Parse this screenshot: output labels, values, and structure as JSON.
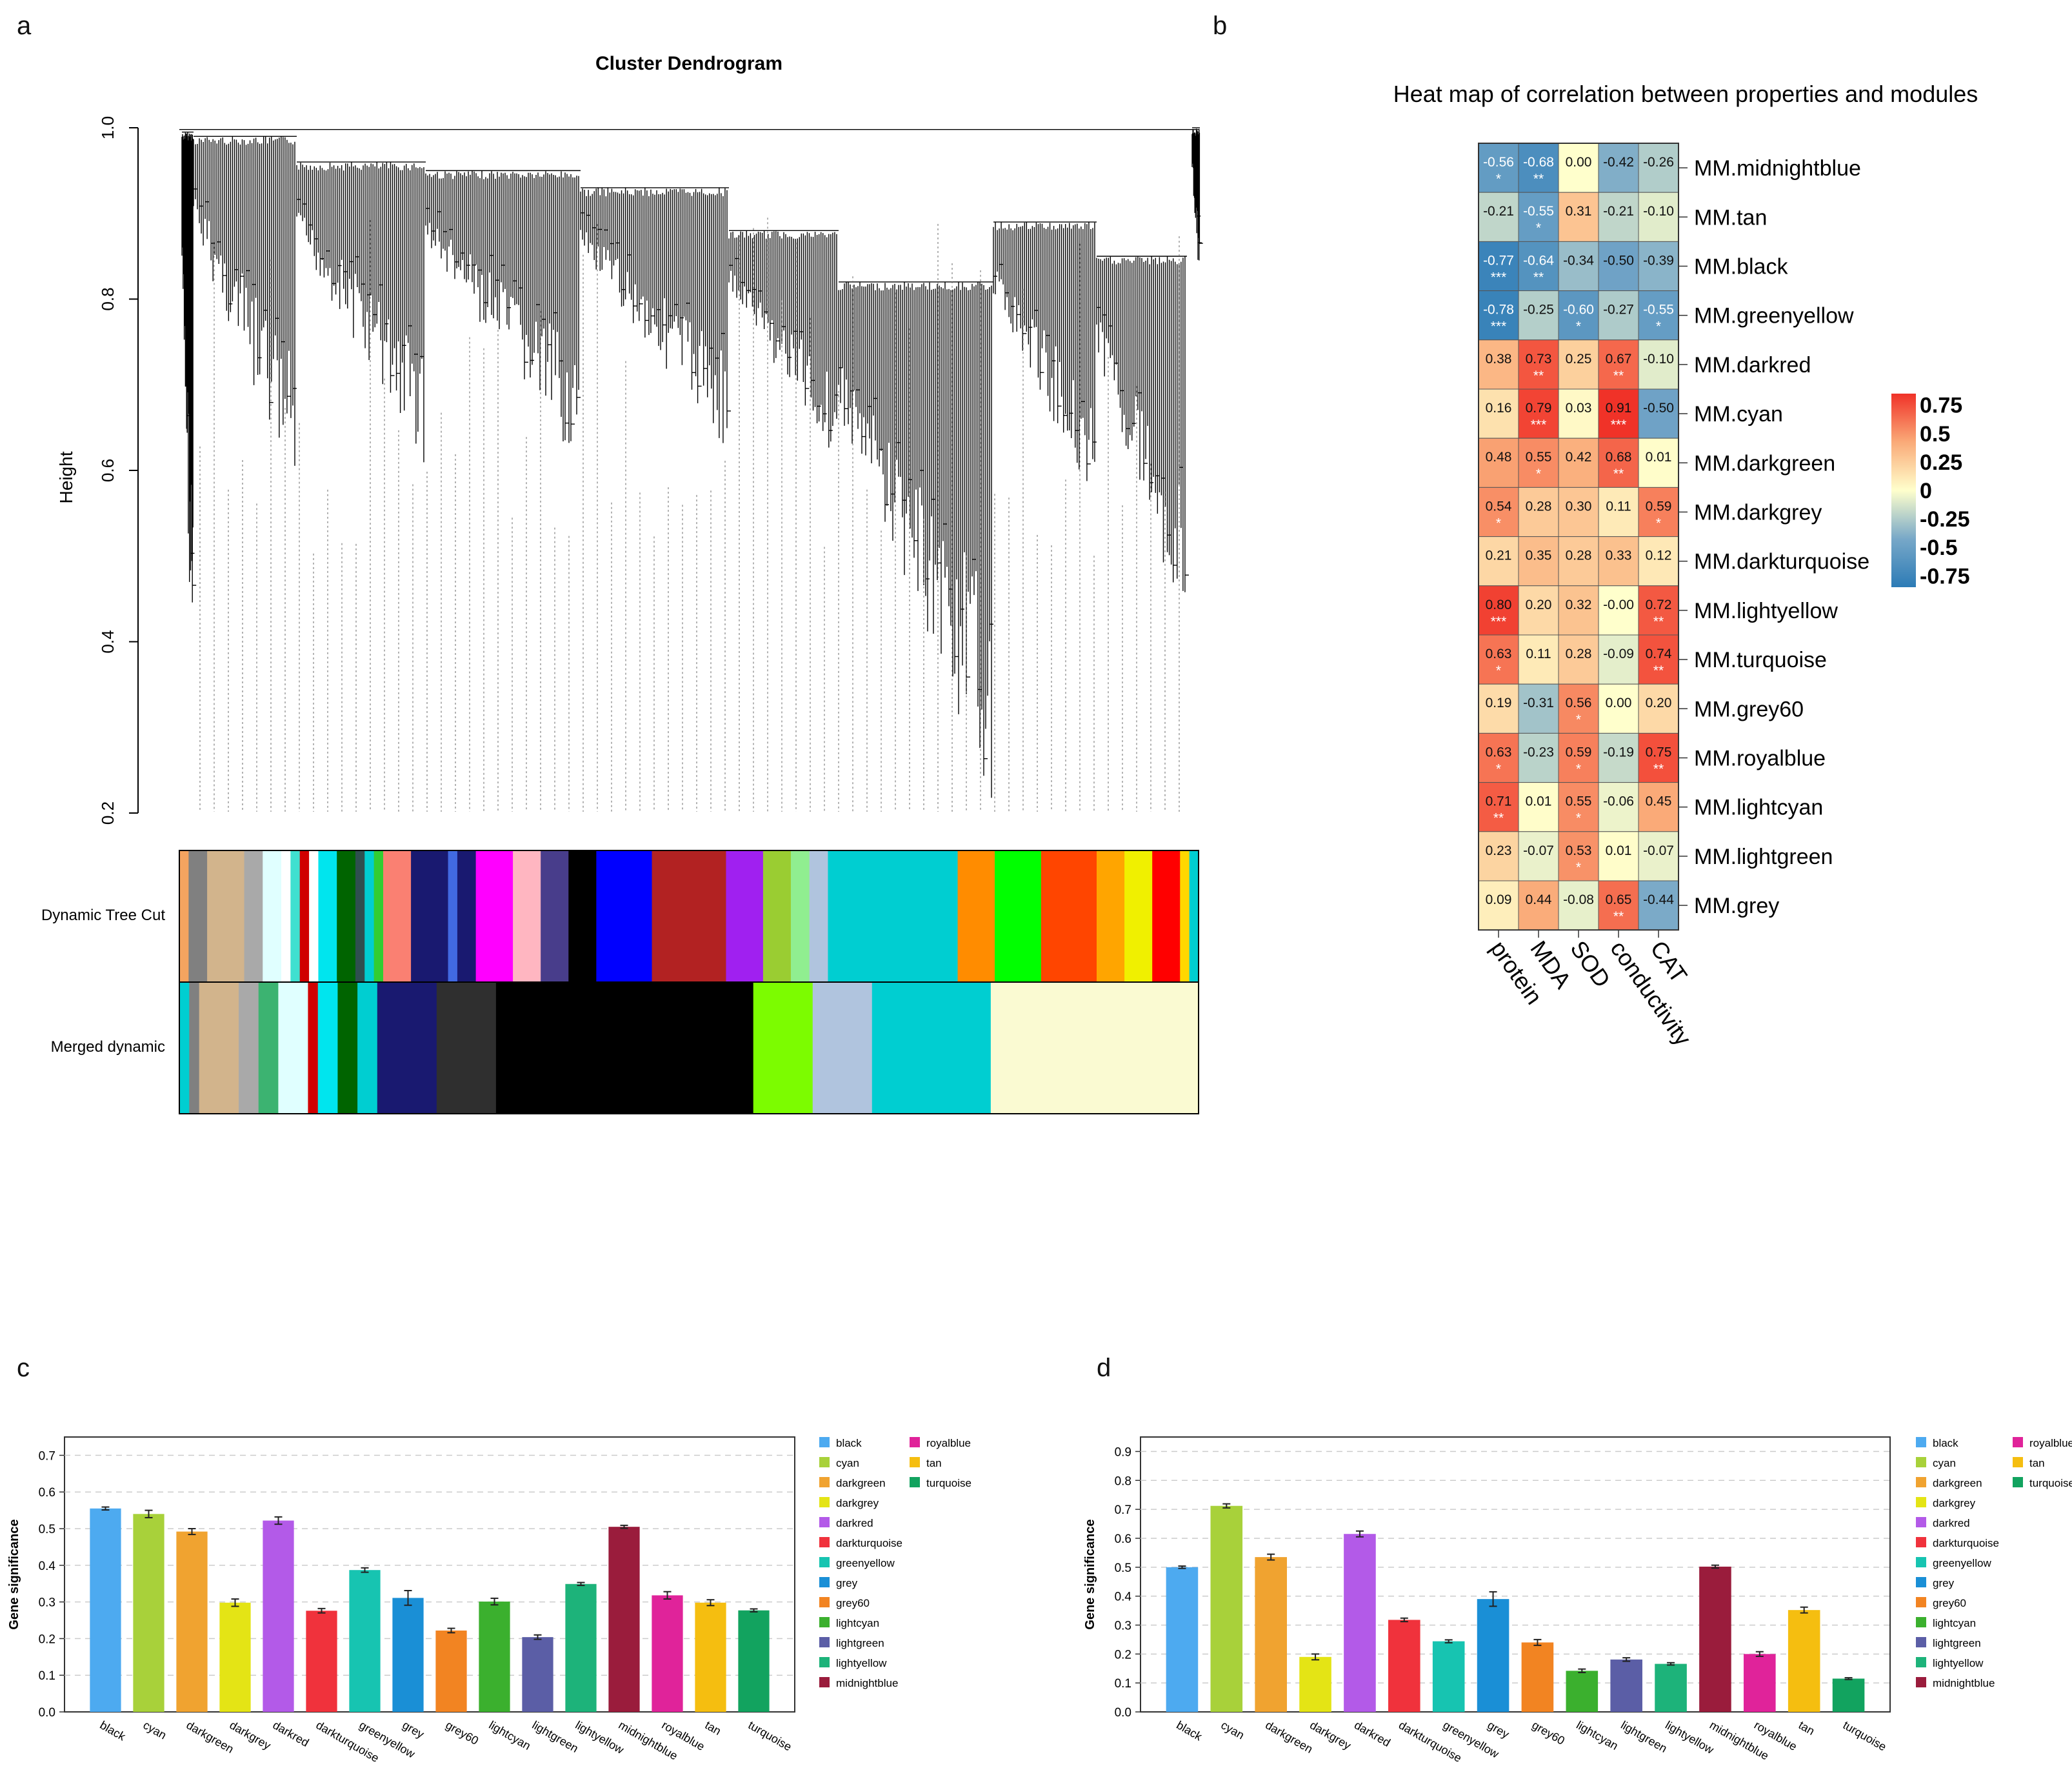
{
  "panels": {
    "a": "a",
    "b": "b",
    "c": "c",
    "d": "d"
  },
  "chart_data": [
    {
      "type": "dendrogram",
      "title": "Cluster Dendrogram",
      "ylabel": "Height",
      "ylim": [
        0.2,
        1.0
      ],
      "yticks": [
        "0.2",
        "0.4",
        "0.6",
        "0.8",
        "1.0"
      ],
      "tracks": [
        "Dynamic Tree Cut",
        "Merged dynamic"
      ],
      "dynamic_tree_cut": [
        {
          "c": "#f4a460",
          "w": 1
        },
        {
          "c": "#808080",
          "w": 2
        },
        {
          "c": "#d2b48c",
          "w": 4
        },
        {
          "c": "#a9a9a9",
          "w": 2
        },
        {
          "c": "#e0ffff",
          "w": 2
        },
        {
          "c": "#ffffff",
          "w": 1
        },
        {
          "c": "#40e0d0",
          "w": 1
        },
        {
          "c": "#d00000",
          "w": 1
        },
        {
          "c": "#ffffff",
          "w": 1
        },
        {
          "c": "#00e5ee",
          "w": 2
        },
        {
          "c": "#006400",
          "w": 2
        },
        {
          "c": "#2f4f4f",
          "w": 1
        },
        {
          "c": "#00ced1",
          "w": 1
        },
        {
          "c": "#32cd32",
          "w": 1
        },
        {
          "c": "#fa8072",
          "w": 3
        },
        {
          "c": "#191970",
          "w": 4
        },
        {
          "c": "#4169e1",
          "w": 1
        },
        {
          "c": "#191970",
          "w": 2
        },
        {
          "c": "#ff00ff",
          "w": 4
        },
        {
          "c": "#ffb6c1",
          "w": 3
        },
        {
          "c": "#483d8b",
          "w": 3
        },
        {
          "c": "#000000",
          "w": 3
        },
        {
          "c": "#0000ff",
          "w": 6
        },
        {
          "c": "#b22222",
          "w": 8
        },
        {
          "c": "#a020f0",
          "w": 4
        },
        {
          "c": "#9acd32",
          "w": 3
        },
        {
          "c": "#90ee90",
          "w": 2
        },
        {
          "c": "#b0c4de",
          "w": 2
        },
        {
          "c": "#00ced1",
          "w": 14
        },
        {
          "c": "#ff8c00",
          "w": 4
        },
        {
          "c": "#00ff00",
          "w": 5
        },
        {
          "c": "#ff4500",
          "w": 6
        },
        {
          "c": "#ffa500",
          "w": 3
        },
        {
          "c": "#f0f000",
          "w": 3
        },
        {
          "c": "#ff0000",
          "w": 3
        },
        {
          "c": "#ffd700",
          "w": 1
        },
        {
          "c": "#00ced1",
          "w": 1
        }
      ],
      "merged_dynamic": [
        {
          "c": "#00ced1",
          "w": 1
        },
        {
          "c": "#808080",
          "w": 1
        },
        {
          "c": "#d2b48c",
          "w": 4
        },
        {
          "c": "#a9a9a9",
          "w": 2
        },
        {
          "c": "#3cb371",
          "w": 2
        },
        {
          "c": "#e0ffff",
          "w": 3
        },
        {
          "c": "#d00000",
          "w": 1
        },
        {
          "c": "#00e5ee",
          "w": 2
        },
        {
          "c": "#006400",
          "w": 2
        },
        {
          "c": "#00ced1",
          "w": 2
        },
        {
          "c": "#191970",
          "w": 6
        },
        {
          "c": "#2f2f2f",
          "w": 6
        },
        {
          "c": "#000000",
          "w": 26
        },
        {
          "c": "#7cfc00",
          "w": 6
        },
        {
          "c": "#b0c4de",
          "w": 6
        },
        {
          "c": "#00ced1",
          "w": 12
        },
        {
          "c": "#fafad2",
          "w": 21
        }
      ]
    },
    {
      "type": "heatmap",
      "title": "Heat map of correlation between properties and modules",
      "columns": [
        "protein",
        "MDA",
        "SOD",
        "conductivity",
        "CAT"
      ],
      "rows": [
        "MM.midnightblue",
        "MM.tan",
        "MM.black",
        "MM.greenyellow",
        "MM.darkred",
        "MM.cyan",
        "MM.darkgreen",
        "MM.darkgrey",
        "MM.darkturquoise",
        "MM.lightyellow",
        "MM.turquoise",
        "MM.grey60",
        "MM.royalblue",
        "MM.lightcyan",
        "MM.lightgreen",
        "MM.grey"
      ],
      "values": [
        [
          "-0.56",
          "-0.68",
          "0.00",
          "-0.42",
          "-0.26"
        ],
        [
          "-0.21",
          "-0.55",
          "0.31",
          "-0.21",
          "-0.10"
        ],
        [
          "-0.77",
          "-0.64",
          "-0.34",
          "-0.50",
          "-0.39"
        ],
        [
          "-0.78",
          "-0.25",
          "-0.60",
          "-0.27",
          "-0.55"
        ],
        [
          "0.38",
          "0.73",
          "0.25",
          "0.67",
          "-0.10"
        ],
        [
          "0.16",
          "0.79",
          "0.03",
          "0.91",
          "-0.50"
        ],
        [
          "0.48",
          "0.55",
          "0.42",
          "0.68",
          "0.01"
        ],
        [
          "0.54",
          "0.28",
          "0.30",
          "0.11",
          "0.59"
        ],
        [
          "0.21",
          "0.35",
          "0.28",
          "0.33",
          "0.12"
        ],
        [
          "0.80",
          "0.20",
          "0.32",
          "-0.00",
          "0.72"
        ],
        [
          "0.63",
          "0.11",
          "0.28",
          "-0.09",
          "0.74"
        ],
        [
          "0.19",
          "-0.31",
          "0.56",
          "0.00",
          "0.20"
        ],
        [
          "0.63",
          "-0.23",
          "0.59",
          "-0.19",
          "0.75"
        ],
        [
          "0.71",
          "0.01",
          "0.55",
          "-0.06",
          "0.45"
        ],
        [
          "0.23",
          "-0.07",
          "0.53",
          "0.01",
          "-0.07"
        ],
        [
          "0.09",
          "0.44",
          "-0.08",
          "0.65",
          "-0.44"
        ]
      ],
      "stars": [
        [
          "*",
          "**",
          "",
          "",
          ""
        ],
        [
          "",
          "*",
          "",
          "",
          ""
        ],
        [
          "***",
          "**",
          "",
          "",
          ""
        ],
        [
          "***",
          "",
          "*",
          "",
          "*"
        ],
        [
          "",
          "**",
          "",
          "**",
          ""
        ],
        [
          "",
          "***",
          "",
          "***",
          ""
        ],
        [
          "",
          "*",
          "",
          "**",
          ""
        ],
        [
          "*",
          "",
          "",
          "",
          "*"
        ],
        [
          "",
          "",
          "",
          "",
          ""
        ],
        [
          "***",
          "",
          "",
          "",
          "**"
        ],
        [
          "*",
          "",
          "",
          "",
          "**"
        ],
        [
          "",
          "",
          "*",
          "",
          ""
        ],
        [
          "*",
          "",
          "*",
          "",
          "**"
        ],
        [
          "**",
          "",
          "*",
          "",
          ""
        ],
        [
          "",
          "",
          "*",
          "",
          ""
        ],
        [
          "",
          "",
          "",
          "**",
          ""
        ]
      ],
      "legend_ticks": [
        "0.75",
        "0.5",
        "0.25",
        "0",
        "-0.25",
        "-0.5",
        "-0.75"
      ],
      "legend_values": [
        0.75,
        0.5,
        0.25,
        0,
        -0.25,
        -0.5,
        -0.75
      ],
      "scale": [
        -0.85,
        0.85
      ]
    },
    {
      "type": "bar",
      "ylabel": "Gene significance",
      "ylim": [
        0,
        0.75
      ],
      "yticks": [
        "0.0",
        "0.1",
        "0.2",
        "0.3",
        "0.4",
        "0.5",
        "0.6",
        "0.7"
      ],
      "categories": [
        "black",
        "cyan",
        "darkgreen",
        "darkgrey",
        "darkred",
        "darkturquoise",
        "greenyellow",
        "grey",
        "grey60",
        "lightcyan",
        "lightgreen",
        "lightyellow",
        "midnightblue",
        "royalblue",
        "tan",
        "turquoise"
      ],
      "values": [
        0.555,
        0.54,
        0.492,
        0.298,
        0.522,
        0.276,
        0.387,
        0.311,
        0.222,
        0.301,
        0.204,
        0.349,
        0.505,
        0.318,
        0.298,
        0.277
      ],
      "errors": [
        0.004,
        0.01,
        0.008,
        0.01,
        0.01,
        0.006,
        0.006,
        0.02,
        0.006,
        0.009,
        0.006,
        0.004,
        0.004,
        0.01,
        0.008,
        0.004
      ],
      "colors": [
        "#4daaf0",
        "#a8d13a",
        "#f0a330",
        "#e4e415",
        "#b35ae8",
        "#f0323c",
        "#17c4b1",
        "#1a8fd6",
        "#f28422",
        "#3bb02e",
        "#5b5ea6",
        "#1db37a",
        "#9a1c3c",
        "#e0239a",
        "#f5be10",
        "#12a35f"
      ],
      "legend_left": [
        "black",
        "cyan",
        "darkgreen",
        "darkgrey",
        "darkred",
        "darkturquoise",
        "greenyellow",
        "grey",
        "grey60",
        "lightcyan",
        "lightgreen",
        "lightyellow",
        "midnightblue"
      ],
      "legend_right": [
        "royalblue",
        "tan",
        "turquoise"
      ]
    },
    {
      "type": "bar",
      "ylabel": "Gene significance",
      "ylim": [
        0,
        0.95
      ],
      "yticks": [
        "0.0",
        "0.1",
        "0.2",
        "0.3",
        "0.4",
        "0.5",
        "0.6",
        "0.7",
        "0.8",
        "0.9"
      ],
      "categories": [
        "black",
        "cyan",
        "darkgreen",
        "darkgrey",
        "darkred",
        "darkturquoise",
        "greenyellow",
        "grey",
        "grey60",
        "lightcyan",
        "lightgreen",
        "lightyellow",
        "midnightblue",
        "royalblue",
        "tan",
        "turquoise"
      ],
      "values": [
        0.5,
        0.712,
        0.535,
        0.19,
        0.615,
        0.318,
        0.244,
        0.39,
        0.24,
        0.142,
        0.181,
        0.166,
        0.502,
        0.2,
        0.352,
        0.115
      ],
      "errors": [
        0.004,
        0.007,
        0.01,
        0.01,
        0.01,
        0.006,
        0.005,
        0.025,
        0.01,
        0.006,
        0.006,
        0.004,
        0.005,
        0.008,
        0.01,
        0.003
      ],
      "colors": [
        "#4daaf0",
        "#a8d13a",
        "#f0a330",
        "#e4e415",
        "#b35ae8",
        "#f0323c",
        "#17c4b1",
        "#1a8fd6",
        "#f28422",
        "#3bb02e",
        "#5b5ea6",
        "#1db37a",
        "#9a1c3c",
        "#e0239a",
        "#f5be10",
        "#12a35f"
      ],
      "legend_left": [
        "black",
        "cyan",
        "darkgreen",
        "darkgrey",
        "darkred",
        "darkturquoise",
        "greenyellow",
        "grey",
        "grey60",
        "lightcyan",
        "lightgreen",
        "lightyellow",
        "midnightblue"
      ],
      "legend_right": [
        "royalblue",
        "tan",
        "turquoise"
      ]
    }
  ]
}
